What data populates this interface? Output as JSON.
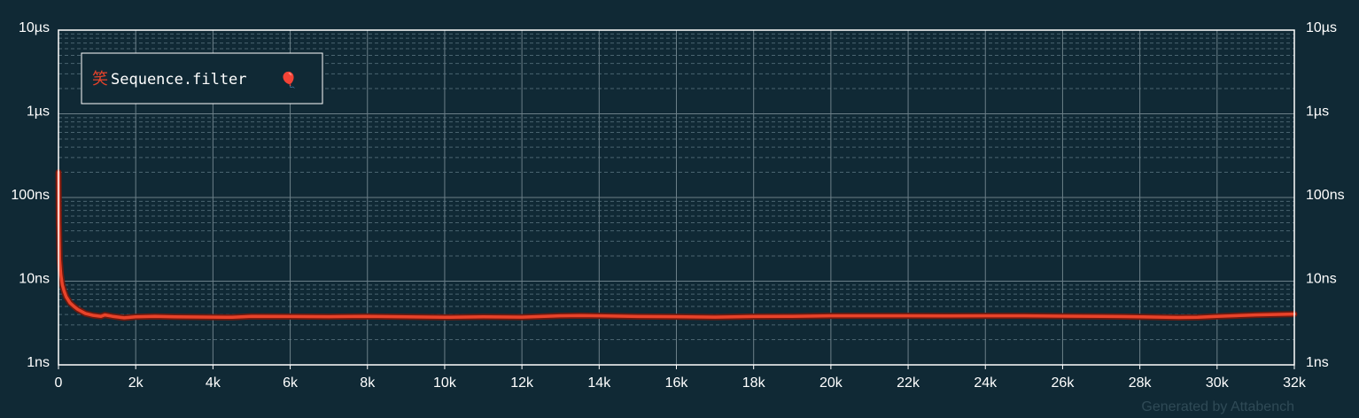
{
  "chart_data": {
    "type": "line",
    "x_ticks": [
      {
        "value": 0,
        "label": "0"
      },
      {
        "value": 2000,
        "label": "2k"
      },
      {
        "value": 4000,
        "label": "4k"
      },
      {
        "value": 6000,
        "label": "6k"
      },
      {
        "value": 8000,
        "label": "8k"
      },
      {
        "value": 10000,
        "label": "10k"
      },
      {
        "value": 12000,
        "label": "12k"
      },
      {
        "value": 14000,
        "label": "14k"
      },
      {
        "value": 16000,
        "label": "16k"
      },
      {
        "value": 18000,
        "label": "18k"
      },
      {
        "value": 20000,
        "label": "20k"
      },
      {
        "value": 22000,
        "label": "22k"
      },
      {
        "value": 24000,
        "label": "24k"
      },
      {
        "value": 26000,
        "label": "26k"
      },
      {
        "value": 28000,
        "label": "28k"
      },
      {
        "value": 30000,
        "label": "30k"
      },
      {
        "value": 32000,
        "label": "32k"
      }
    ],
    "y_ticks": [
      {
        "value": 1e-09,
        "label": "1ns"
      },
      {
        "value": 1e-08,
        "label": "10ns"
      },
      {
        "value": 1e-07,
        "label": "100ns"
      },
      {
        "value": 1e-06,
        "label": "1µs"
      },
      {
        "value": 1e-05,
        "label": "10µs"
      }
    ],
    "xlim": [
      0,
      32000
    ],
    "ylim": [
      1e-09,
      1e-05
    ],
    "y_scale": "log",
    "grid": true,
    "minor_grid": "dashed",
    "legend_position": "top-left",
    "series": [
      {
        "name": "Sequence.filter",
        "color": "#e8432a",
        "x": [
          1,
          10,
          30,
          60,
          100,
          150,
          200,
          300,
          400,
          500,
          700,
          900,
          1100,
          1200,
          1400,
          1700,
          2000,
          2500,
          3000,
          4000,
          4500,
          5000,
          6000,
          7000,
          8000,
          9000,
          10000,
          11000,
          12000,
          13000,
          13500,
          14000,
          15000,
          16000,
          17000,
          18000,
          19000,
          20000,
          21000,
          22000,
          23000,
          24000,
          25000,
          26000,
          27000,
          28000,
          29000,
          29500,
          30000,
          31000,
          32000
        ],
        "y": [
          2e-07,
          5e-08,
          1.8e-08,
          1.2e-08,
          9e-09,
          7.5e-09,
          6.5e-09,
          5.5e-09,
          5e-09,
          4.6e-09,
          4.1e-09,
          3.9e-09,
          3.8e-09,
          3.95e-09,
          3.8e-09,
          3.65e-09,
          3.75e-09,
          3.8e-09,
          3.75e-09,
          3.72e-09,
          3.7e-09,
          3.8e-09,
          3.78e-09,
          3.76e-09,
          3.8e-09,
          3.75e-09,
          3.7e-09,
          3.75e-09,
          3.72e-09,
          3.85e-09,
          3.88e-09,
          3.85e-09,
          3.78e-09,
          3.76e-09,
          3.72e-09,
          3.78e-09,
          3.8e-09,
          3.85e-09,
          3.85e-09,
          3.85e-09,
          3.84e-09,
          3.85e-09,
          3.85e-09,
          3.82e-09,
          3.8e-09,
          3.75e-09,
          3.68e-09,
          3.7e-09,
          3.8e-09,
          3.95e-09,
          4.05e-09
        ]
      }
    ]
  },
  "legend": {
    "mark": "笑",
    "label": "Sequence.filter",
    "emoji": "🎈"
  },
  "footer": "Generated by Attabench",
  "colors": {
    "background": "#102935",
    "axis": "#ffffff",
    "grid_major": "#6b7f88",
    "grid_minor": "#4a6470",
    "series": "#e8432a",
    "series_outline": "#6e1a10",
    "footer": "#2f4a56"
  }
}
